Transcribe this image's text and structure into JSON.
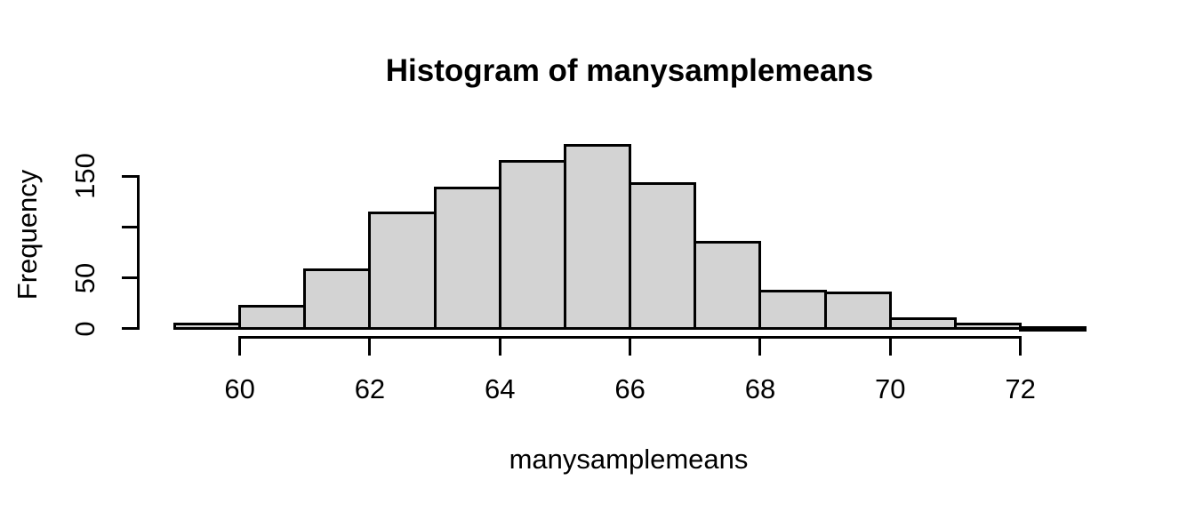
{
  "chart_data": {
    "type": "bar",
    "subtype": "histogram",
    "title": "Histogram of manysamplemeans",
    "xlabel": "manysamplemeans",
    "ylabel": "Frequency",
    "bin_start": 59,
    "bin_width": 1,
    "bins": [
      {
        "from": 59,
        "to": 60,
        "count": 5
      },
      {
        "from": 60,
        "to": 61,
        "count": 22
      },
      {
        "from": 61,
        "to": 62,
        "count": 58
      },
      {
        "from": 62,
        "to": 63,
        "count": 114
      },
      {
        "from": 63,
        "to": 64,
        "count": 138
      },
      {
        "from": 64,
        "to": 65,
        "count": 165
      },
      {
        "from": 65,
        "to": 66,
        "count": 180
      },
      {
        "from": 66,
        "to": 67,
        "count": 143
      },
      {
        "from": 67,
        "to": 68,
        "count": 85
      },
      {
        "from": 68,
        "to": 69,
        "count": 37
      },
      {
        "from": 69,
        "to": 70,
        "count": 35
      },
      {
        "from": 70,
        "to": 71,
        "count": 10
      },
      {
        "from": 71,
        "to": 72,
        "count": 5
      },
      {
        "from": 72,
        "to": 73,
        "count": 1
      }
    ],
    "counts": [
      5,
      22,
      58,
      114,
      138,
      165,
      180,
      143,
      85,
      37,
      35,
      10,
      5,
      1
    ],
    "x_ticks": [
      {
        "value": 60,
        "label": "60"
      },
      {
        "value": 62,
        "label": "62"
      },
      {
        "value": 64,
        "label": "64"
      },
      {
        "value": 66,
        "label": "66"
      },
      {
        "value": 68,
        "label": "68"
      },
      {
        "value": 70,
        "label": "70"
      },
      {
        "value": 72,
        "label": "72"
      }
    ],
    "y_ticks": [
      {
        "value": 0,
        "label": "0"
      },
      {
        "value": 50,
        "label": "50"
      },
      {
        "value": 100,
        "label": ""
      },
      {
        "value": 150,
        "label": "150"
      }
    ],
    "xlim": [
      59,
      73
    ],
    "ylim": [
      0,
      180
    ],
    "grid": false,
    "legend": null,
    "colors": {
      "bar_fill": "#d3d3d3",
      "bar_border": "#000000",
      "axis": "#000000",
      "text": "#000000",
      "background": "#ffffff"
    }
  }
}
